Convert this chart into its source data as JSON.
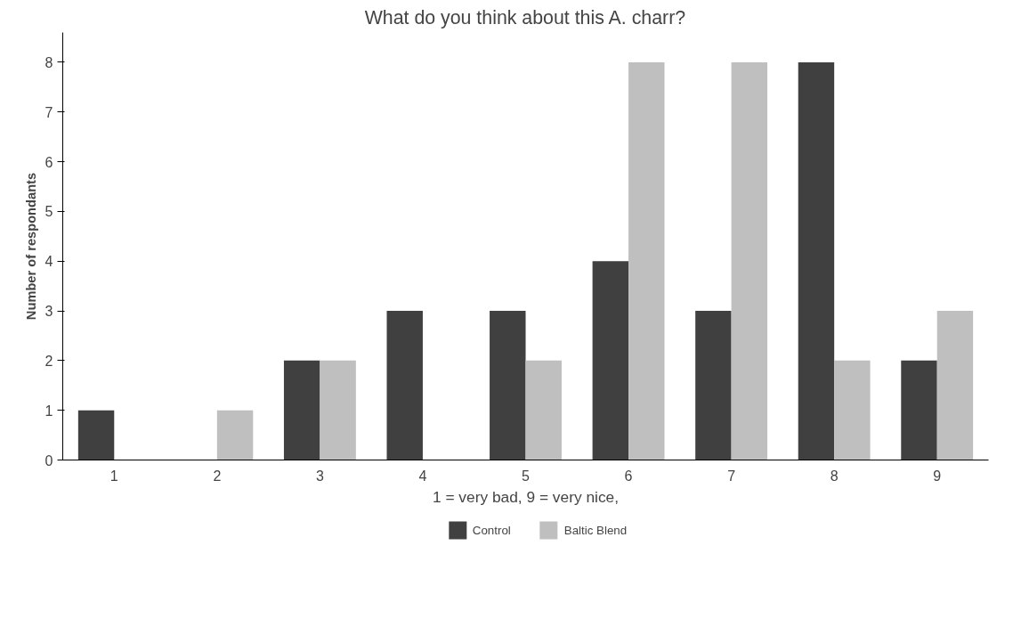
{
  "chart_data": {
    "type": "bar",
    "title": "What do you think about this A. charr?",
    "xlabel": "1 = very bad, 9 = very nice,",
    "ylabel": "Number of respondants",
    "categories": [
      "1",
      "2",
      "3",
      "4",
      "5",
      "6",
      "7",
      "8",
      "9"
    ],
    "series": [
      {
        "name": "Control",
        "color": "#404040",
        "values": [
          1,
          0,
          2,
          3,
          3,
          4,
          3,
          8,
          2
        ]
      },
      {
        "name": "Baltic Blend",
        "color": "#bfbfbf",
        "values": [
          0,
          1,
          2,
          0,
          2,
          8,
          8,
          2,
          3
        ]
      }
    ],
    "ylim": [
      0,
      8.6
    ],
    "yticks": [
      0,
      1,
      2,
      3,
      4,
      5,
      6,
      7,
      8
    ],
    "grid": false,
    "legend": "bottom"
  }
}
